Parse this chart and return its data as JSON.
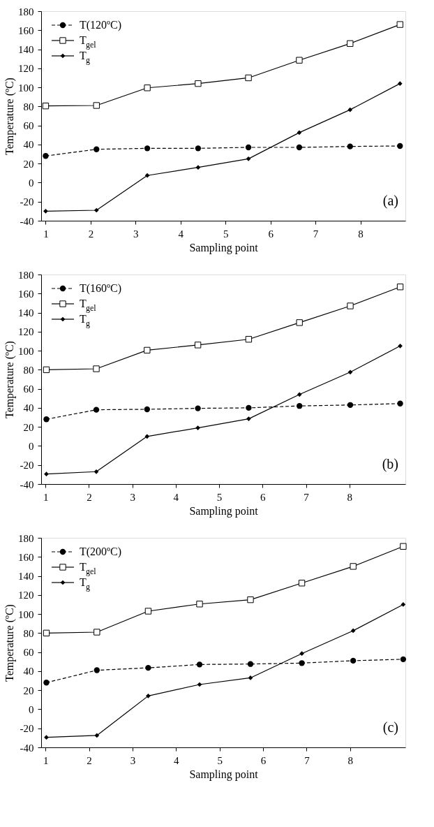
{
  "chart_data": [
    {
      "type": "line",
      "xlabel": "Sampling point",
      "ylabel": "Temperature (ºC)",
      "xlim": [
        0.9,
        9.0
      ],
      "xticks": [
        1,
        2,
        3,
        4,
        5,
        6,
        7,
        8
      ],
      "ylim": [
        -40,
        180
      ],
      "yticks": [
        -40,
        -20,
        0,
        20,
        40,
        60,
        80,
        100,
        120,
        140,
        160,
        180
      ],
      "grid": false,
      "legend": "top left",
      "annotations": [
        "(a)"
      ],
      "series": [
        {
          "name": "T(120ºC)",
          "color": "#000000",
          "marker": "circle",
          "line_style": "dashed",
          "x": [
            1.0,
            2.13,
            3.26,
            4.39,
            5.51,
            6.64,
            7.77,
            8.88
          ],
          "values": [
            28,
            35,
            36,
            36,
            37,
            37,
            38,
            38.5
          ]
        },
        {
          "name": "T$_{gel}$",
          "color": "#000000",
          "marker": "square",
          "line_style": "solid",
          "x": [
            1.0,
            2.13,
            3.26,
            4.39,
            5.51,
            6.64,
            7.77,
            8.88
          ],
          "values": [
            80.5,
            81,
            99.5,
            104,
            110,
            128.5,
            146,
            166
          ]
        },
        {
          "name": "T$_{g}$",
          "color": "#000000",
          "marker": "diamond",
          "line_style": "solid",
          "x": [
            1.0,
            2.13,
            3.26,
            4.39,
            5.51,
            6.64,
            7.77,
            8.88
          ],
          "values": [
            -30,
            -29,
            7.5,
            16,
            25,
            52.5,
            76.5,
            104
          ]
        }
      ]
    },
    {
      "type": "line",
      "xlabel": "Sampling point",
      "ylabel": "Temperature (ºC)",
      "xlim": [
        0.9,
        9.29
      ],
      "xticks": [
        1,
        2,
        3,
        4,
        5,
        6,
        7,
        8
      ],
      "ylim": [
        -40,
        180
      ],
      "yticks": [
        -40,
        -20,
        0,
        20,
        40,
        60,
        80,
        100,
        120,
        140,
        160,
        180
      ],
      "grid": false,
      "legend": "top left",
      "annotations": [
        "(b)"
      ],
      "series": [
        {
          "name": "T(160ºC)",
          "color": "#000000",
          "marker": "circle",
          "line_style": "dashed",
          "x": [
            1.02,
            2.17,
            3.34,
            4.51,
            5.68,
            6.85,
            8.02,
            9.17
          ],
          "values": [
            28,
            38,
            38.5,
            39.5,
            40,
            42,
            43,
            44.5
          ]
        },
        {
          "name": "T$_{gel}$",
          "color": "#000000",
          "marker": "square",
          "line_style": "solid",
          "x": [
            1.02,
            2.17,
            3.34,
            4.51,
            5.68,
            6.85,
            8.02,
            9.17
          ],
          "values": [
            80,
            81,
            100.5,
            106,
            112,
            129.5,
            147,
            167
          ]
        },
        {
          "name": "T$_{g}$",
          "color": "#000000",
          "marker": "diamond",
          "line_style": "solid",
          "x": [
            1.02,
            2.17,
            3.34,
            4.51,
            5.68,
            6.85,
            8.02,
            9.17
          ],
          "values": [
            -29.5,
            -27,
            10,
            19,
            28.5,
            54,
            77.5,
            105
          ]
        }
      ]
    },
    {
      "type": "line",
      "xlabel": "Sampling point",
      "ylabel": "Temperature (ºC)",
      "xlim": [
        0.9,
        9.27
      ],
      "xticks": [
        1,
        2,
        3,
        4,
        5,
        6,
        7,
        8
      ],
      "ylim": [
        -40,
        180
      ],
      "yticks": [
        -40,
        -20,
        0,
        20,
        40,
        60,
        80,
        100,
        120,
        140,
        160,
        180
      ],
      "grid": false,
      "legend": "top left",
      "annotations": [
        "(c)"
      ],
      "series": [
        {
          "name": "T(200ºC)",
          "color": "#000000",
          "marker": "circle",
          "line_style": "dashed",
          "x": [
            1.02,
            2.18,
            3.36,
            4.54,
            5.71,
            6.89,
            8.07,
            9.22
          ],
          "values": [
            28,
            41,
            43.5,
            47,
            47.5,
            48.5,
            51,
            52.5
          ]
        },
        {
          "name": "T$_{gel}$",
          "color": "#000000",
          "marker": "square",
          "line_style": "solid",
          "x": [
            1.02,
            2.18,
            3.36,
            4.54,
            5.71,
            6.89,
            8.07,
            9.22
          ],
          "values": [
            80,
            81,
            103,
            110.5,
            115,
            132.5,
            150,
            171
          ]
        },
        {
          "name": "T$_{g}$",
          "color": "#000000",
          "marker": "diamond",
          "line_style": "solid",
          "x": [
            1.02,
            2.18,
            3.36,
            4.54,
            5.71,
            6.89,
            8.07,
            9.22
          ],
          "values": [
            -29.5,
            -27.5,
            14,
            26,
            33,
            58.5,
            82.5,
            110
          ]
        }
      ]
    }
  ]
}
